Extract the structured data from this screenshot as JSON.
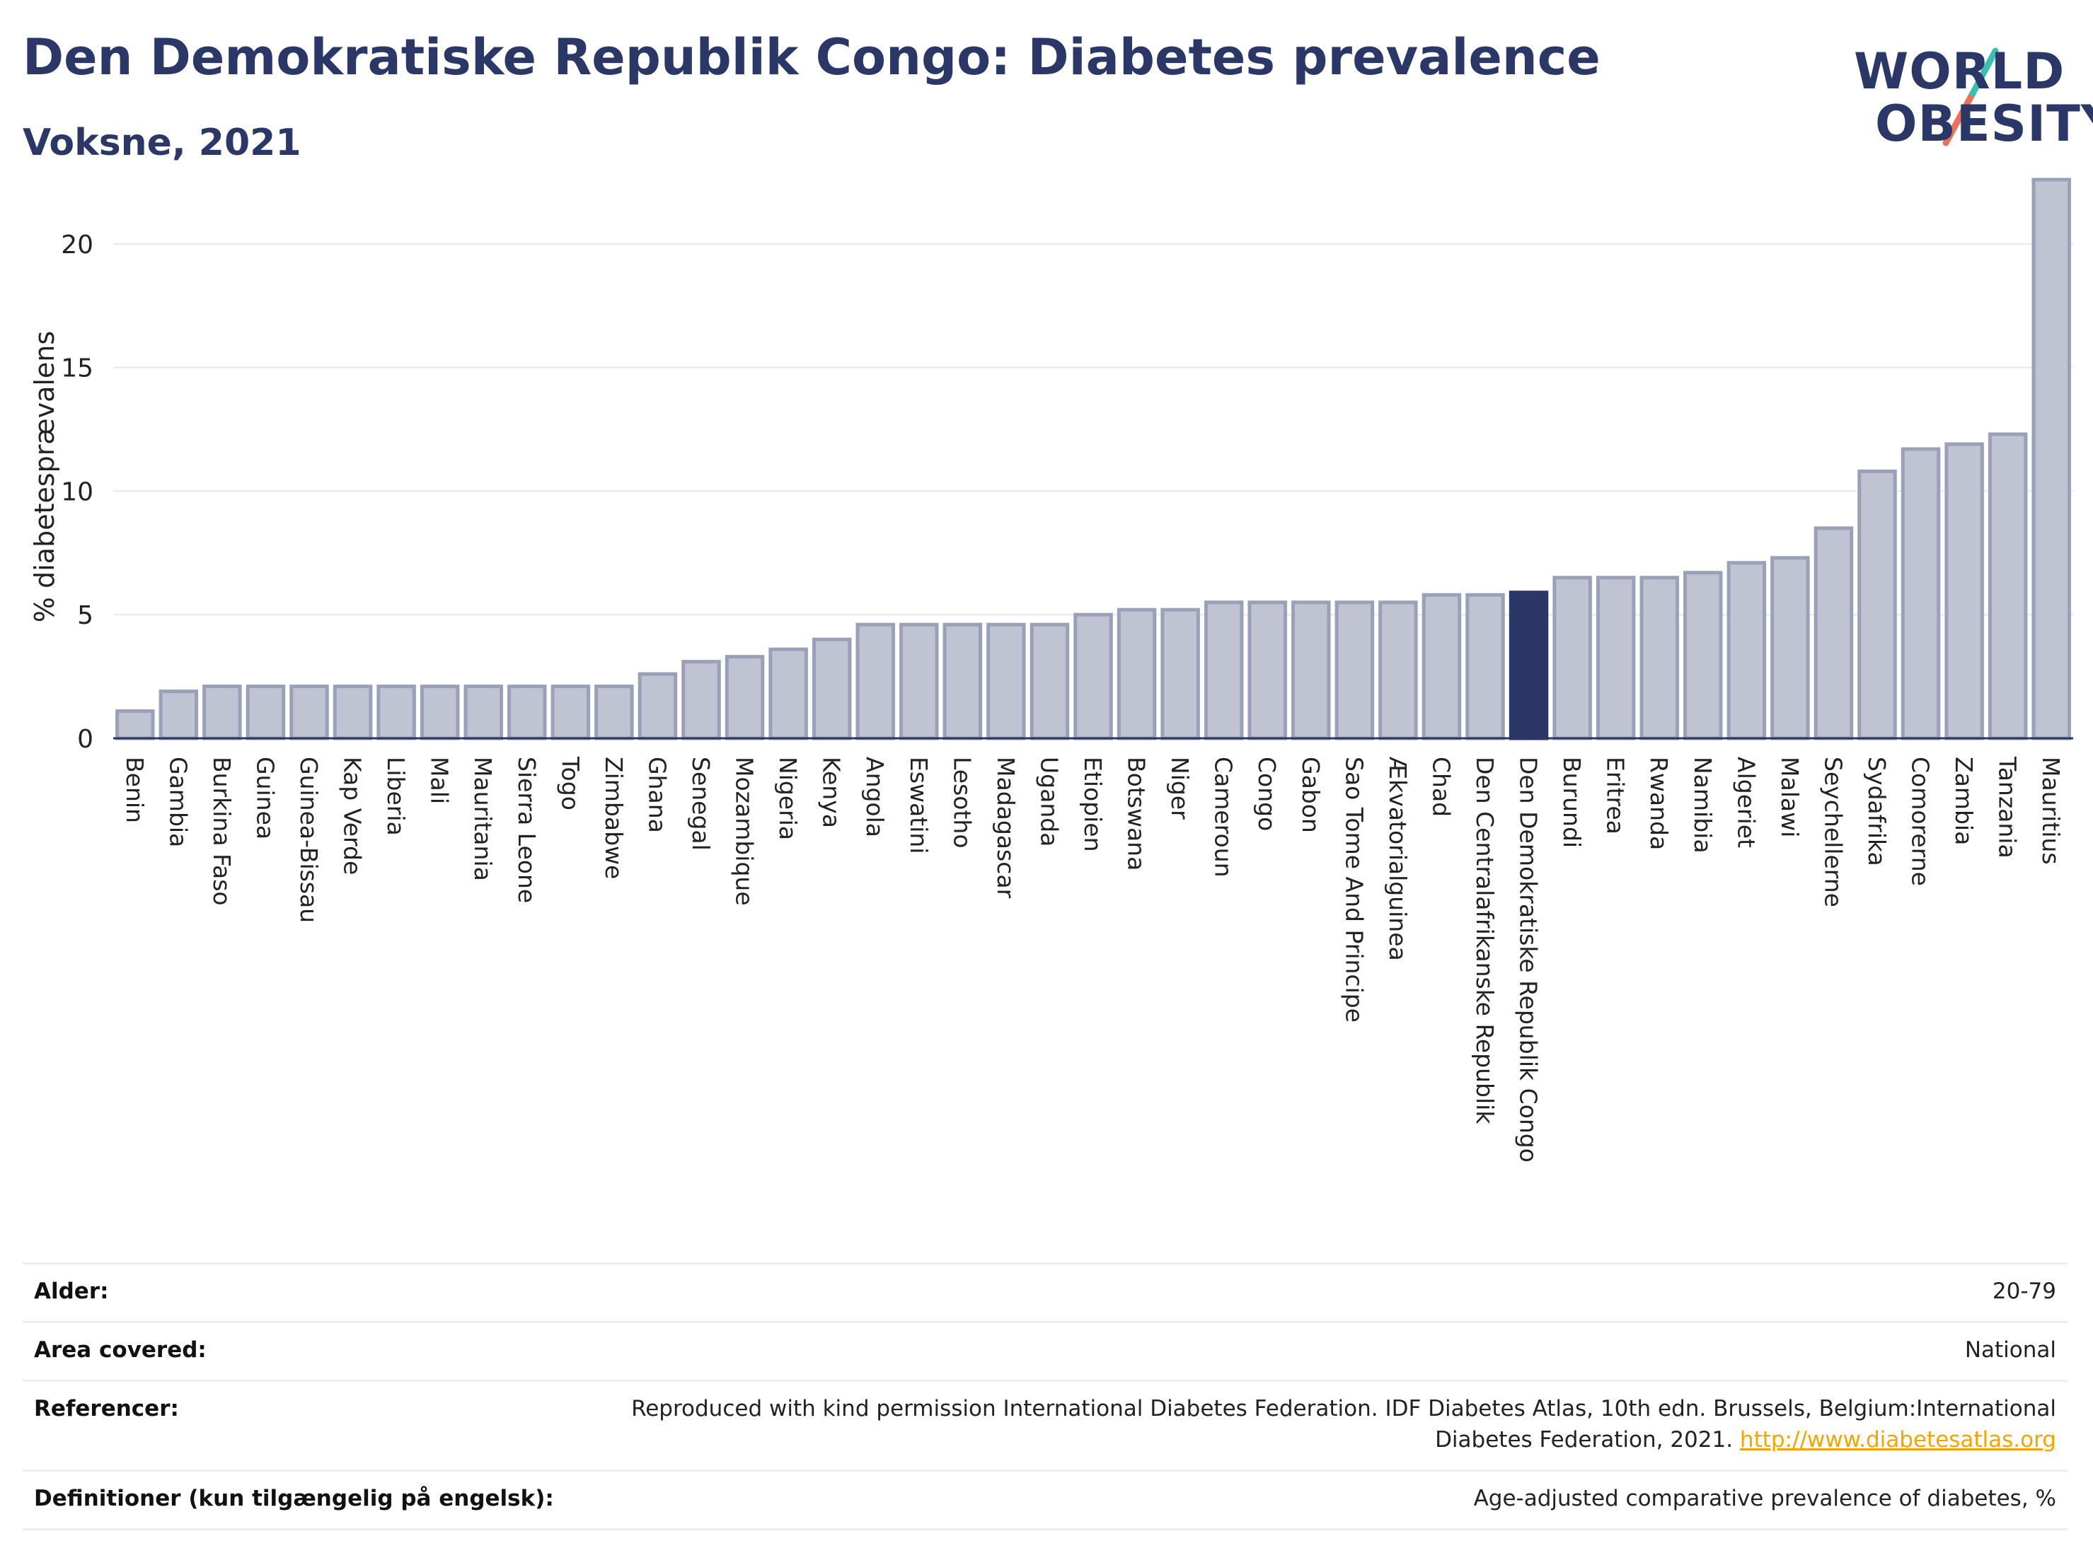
{
  "header": {
    "title": "Den Demokratiske Republik Congo: Diabetes prevalence",
    "subtitle": "Voksne, 2021"
  },
  "logo": {
    "line1": "WORLD",
    "line2": "OBESITY",
    "colors": {
      "text": "#2b3766",
      "slash_top": "#3cbfae",
      "slash_bottom": "#e9705a"
    }
  },
  "chart_data": {
    "type": "bar",
    "title": "",
    "xlabel": "",
    "ylabel": "% diabetesprævalens",
    "ylim": [
      0,
      23
    ],
    "yticks": [
      0,
      5,
      10,
      15,
      20
    ],
    "grid": true,
    "highlight": "Den Demokratiske Republik Congo",
    "colors": {
      "bar": "#c0c4d2",
      "bar_edge": "#9aa0b8",
      "highlight": "#2b3766"
    },
    "categories": [
      "Benin",
      "Gambia",
      "Burkina Faso",
      "Guinea",
      "Guinea-Bissau",
      "Kap Verde",
      "Liberia",
      "Mali",
      "Mauritania",
      "Sierra Leone",
      "Togo",
      "Zimbabwe",
      "Ghana",
      "Senegal",
      "Mozambique",
      "Nigeria",
      "Kenya",
      "Angola",
      "Eswatini",
      "Lesotho",
      "Madagascar",
      "Uganda",
      "Etiopien",
      "Botswana",
      "Niger",
      "Cameroun",
      "Congo",
      "Gabon",
      "Sao Tome And Principe",
      "Ækvatorialguinea",
      "Chad",
      "Den Centralafrikanske Republik",
      "Den Demokratiske Republik Congo",
      "Burundi",
      "Eritrea",
      "Rwanda",
      "Namibia",
      "Algeriet",
      "Malawi",
      "Seychellerne",
      "Sydafrika",
      "Comorerne",
      "Zambia",
      "Tanzania",
      "Mauritius"
    ],
    "values": [
      1.1,
      1.9,
      2.1,
      2.1,
      2.1,
      2.1,
      2.1,
      2.1,
      2.1,
      2.1,
      2.1,
      2.1,
      2.6,
      3.1,
      3.3,
      3.6,
      4.0,
      4.6,
      4.6,
      4.6,
      4.6,
      4.6,
      5.0,
      5.2,
      5.2,
      5.5,
      5.5,
      5.5,
      5.5,
      5.5,
      5.8,
      5.8,
      5.9,
      6.5,
      6.5,
      6.5,
      6.7,
      7.1,
      7.3,
      8.5,
      10.8,
      11.7,
      11.9,
      12.3,
      22.6
    ]
  },
  "info": [
    {
      "label": "Alder:",
      "value": "20-79"
    },
    {
      "label": "Area covered:",
      "value": "National"
    },
    {
      "label": "Referencer:",
      "value": "Reproduced with kind permission International Diabetes Federation.  IDF Diabetes Atlas, 10th edn. Brussels, Belgium:International",
      "value2": "Diabetes Federation, 2021. ",
      "link": "http://www.diabetesatlas.org"
    },
    {
      "label": "Definitioner (kun tilgængelig på engelsk):",
      "value": "Age-adjusted comparative prevalence of diabetes, %"
    }
  ]
}
